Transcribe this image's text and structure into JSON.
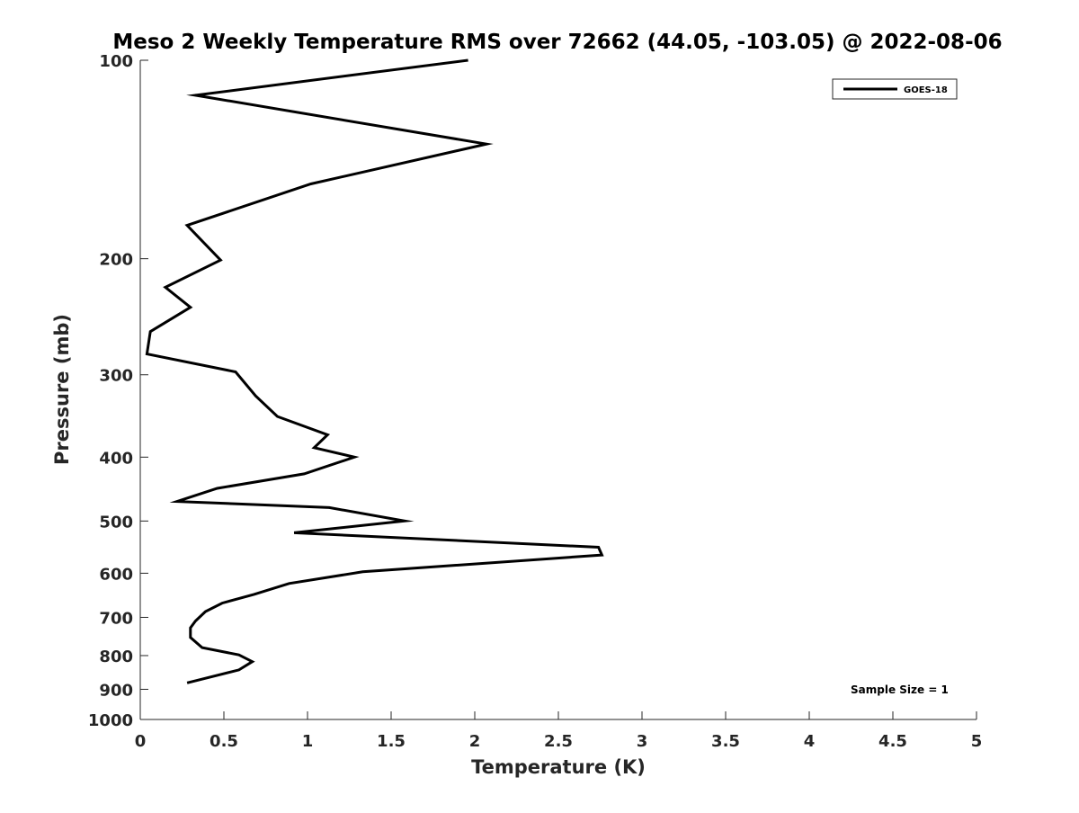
{
  "chart_data": {
    "type": "line",
    "title": "Meso 2 Weekly Temperature RMS over 72662 (44.05, -103.05) @ 2022-08-06",
    "xlabel": "Temperature (K)",
    "ylabel": "Pressure (mb)",
    "xlim": [
      0,
      5
    ],
    "ylim": [
      100,
      1000
    ],
    "y_scale": "log",
    "y_direction": "reversed",
    "grid": false,
    "x_ticks": [
      0,
      0.5,
      1,
      1.5,
      2,
      2.5,
      3,
      3.5,
      4,
      4.5,
      5
    ],
    "x_tick_labels": [
      "0",
      "0.5",
      "1",
      "1.5",
      "2",
      "2.5",
      "3",
      "3.5",
      "4",
      "4.5",
      "5"
    ],
    "y_ticks": [
      100,
      200,
      300,
      400,
      500,
      600,
      700,
      800,
      900,
      1000
    ],
    "y_tick_labels": [
      "100",
      "200",
      "300",
      "400",
      "500",
      "600",
      "700",
      "800",
      "900",
      "1000"
    ],
    "legend_position": "top-right",
    "series": [
      {
        "name": "GOES-18",
        "color": "#000000",
        "x": [
          1.96,
          0.33,
          2.07,
          1.02,
          0.28,
          0.48,
          0.15,
          0.3,
          0.06,
          0.04,
          0.57,
          0.69,
          0.82,
          1.12,
          1.04,
          1.28,
          0.98,
          0.46,
          0.22,
          1.13,
          1.58,
          0.92,
          2.74,
          2.76,
          1.33,
          0.89,
          0.68,
          0.49,
          0.39,
          0.33,
          0.3,
          0.3,
          0.37,
          0.59,
          0.67,
          0.59,
          0.28
        ],
        "y": [
          100,
          113,
          134,
          154,
          178,
          201,
          221,
          237,
          258,
          279,
          297,
          323,
          347,
          370,
          387,
          400,
          424,
          446,
          467,
          477,
          500,
          521,
          548,
          563,
          597,
          622,
          646,
          666,
          686,
          709,
          726,
          751,
          778,
          798,
          817,
          841,
          880
        ]
      }
    ],
    "annotations": [
      {
        "text": "Sample Size = 1",
        "position": "bottom-right"
      }
    ]
  }
}
